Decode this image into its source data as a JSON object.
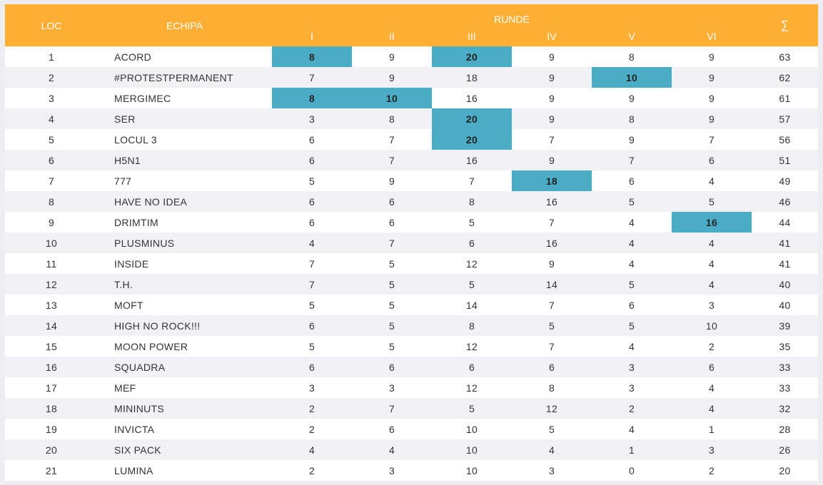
{
  "header": {
    "loc": "LOC",
    "team": "ECHIPA",
    "rounds_group": "RUNDE",
    "rounds": [
      "I",
      "II",
      "III",
      "IV",
      "V",
      "VI"
    ],
    "sum": "∑"
  },
  "highlight_color": "#4bacc6",
  "header_color": "#fdae34",
  "rows": [
    {
      "loc": "1",
      "team": "ACORD",
      "scores": [
        "8",
        "9",
        "20",
        "9",
        "8",
        "9"
      ],
      "total": "63",
      "highlight": [
        0,
        2
      ]
    },
    {
      "loc": "2",
      "team": "#PROTESTPERMANENT",
      "scores": [
        "7",
        "9",
        "18",
        "9",
        "10",
        "9"
      ],
      "total": "62",
      "highlight": [
        4
      ]
    },
    {
      "loc": "3",
      "team": "MERGIMEC",
      "scores": [
        "8",
        "10",
        "16",
        "9",
        "9",
        "9"
      ],
      "total": "61",
      "highlight": [
        0,
        1
      ]
    },
    {
      "loc": "4",
      "team": "SER",
      "scores": [
        "3",
        "8",
        "20",
        "9",
        "8",
        "9"
      ],
      "total": "57",
      "highlight": [
        2
      ]
    },
    {
      "loc": "5",
      "team": "LOCUL 3",
      "scores": [
        "6",
        "7",
        "20",
        "7",
        "9",
        "7"
      ],
      "total": "56",
      "highlight": [
        2
      ]
    },
    {
      "loc": "6",
      "team": "H5N1",
      "scores": [
        "6",
        "7",
        "16",
        "9",
        "7",
        "6"
      ],
      "total": "51",
      "highlight": []
    },
    {
      "loc": "7",
      "team": "777",
      "scores": [
        "5",
        "9",
        "7",
        "18",
        "6",
        "4"
      ],
      "total": "49",
      "highlight": [
        3
      ]
    },
    {
      "loc": "8",
      "team": "HAVE NO IDEA",
      "scores": [
        "6",
        "6",
        "8",
        "16",
        "5",
        "5"
      ],
      "total": "46",
      "highlight": []
    },
    {
      "loc": "9",
      "team": "DRIMTIM",
      "scores": [
        "6",
        "6",
        "5",
        "7",
        "4",
        "16"
      ],
      "total": "44",
      "highlight": [
        5
      ]
    },
    {
      "loc": "10",
      "team": "PLUSMINUS",
      "scores": [
        "4",
        "7",
        "6",
        "16",
        "4",
        "4"
      ],
      "total": "41",
      "highlight": []
    },
    {
      "loc": "11",
      "team": "INSIDE",
      "scores": [
        "7",
        "5",
        "12",
        "9",
        "4",
        "4"
      ],
      "total": "41",
      "highlight": []
    },
    {
      "loc": "12",
      "team": "T.H.",
      "scores": [
        "7",
        "5",
        "5",
        "14",
        "5",
        "4"
      ],
      "total": "40",
      "highlight": []
    },
    {
      "loc": "13",
      "team": "MOFT",
      "scores": [
        "5",
        "5",
        "14",
        "7",
        "6",
        "3"
      ],
      "total": "40",
      "highlight": []
    },
    {
      "loc": "14",
      "team": "HIGH NO ROCK!!!",
      "scores": [
        "6",
        "5",
        "8",
        "5",
        "5",
        "10"
      ],
      "total": "39",
      "highlight": []
    },
    {
      "loc": "15",
      "team": "MOON POWER",
      "scores": [
        "5",
        "5",
        "12",
        "7",
        "4",
        "2"
      ],
      "total": "35",
      "highlight": []
    },
    {
      "loc": "16",
      "team": "SQUADRA",
      "scores": [
        "6",
        "6",
        "6",
        "6",
        "3",
        "6"
      ],
      "total": "33",
      "highlight": []
    },
    {
      "loc": "17",
      "team": "MEF",
      "scores": [
        "3",
        "3",
        "12",
        "8",
        "3",
        "4"
      ],
      "total": "33",
      "highlight": []
    },
    {
      "loc": "18",
      "team": "MININUTS",
      "scores": [
        "2",
        "7",
        "5",
        "12",
        "2",
        "4"
      ],
      "total": "32",
      "highlight": []
    },
    {
      "loc": "19",
      "team": "INVICTA",
      "scores": [
        "2",
        "6",
        "10",
        "5",
        "4",
        "1"
      ],
      "total": "28",
      "highlight": []
    },
    {
      "loc": "20",
      "team": "SIX PACK",
      "scores": [
        "4",
        "4",
        "10",
        "4",
        "1",
        "3"
      ],
      "total": "26",
      "highlight": []
    },
    {
      "loc": "21",
      "team": "LUMINA",
      "scores": [
        "2",
        "3",
        "10",
        "3",
        "0",
        "2"
      ],
      "total": "20",
      "highlight": []
    }
  ]
}
